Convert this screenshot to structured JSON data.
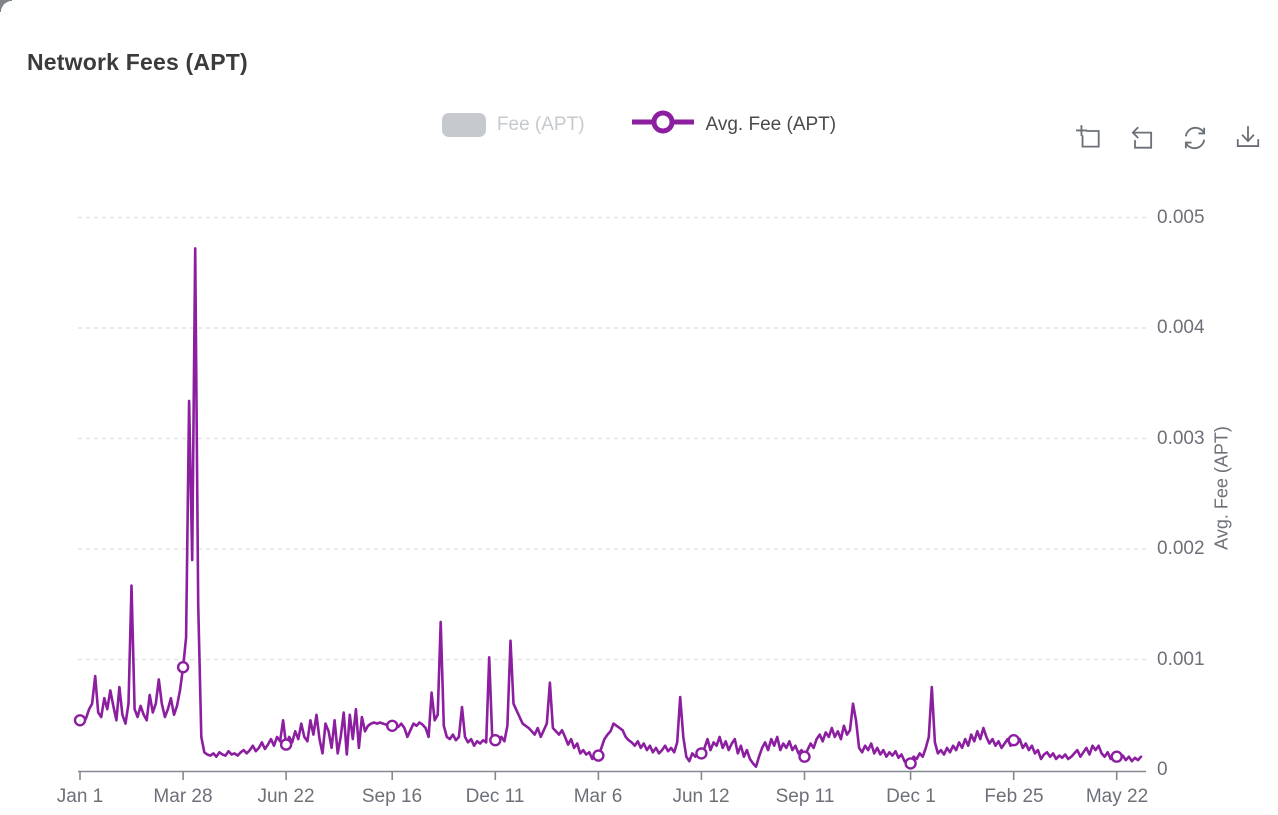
{
  "page": {
    "title": "Network Fees (APT)"
  },
  "legend": {
    "items": [
      {
        "label": "Fee (APT)",
        "type": "bar",
        "enabled": false
      },
      {
        "label": "Avg. Fee (APT)",
        "type": "line",
        "enabled": true
      }
    ]
  },
  "toolbar": {
    "buttons": [
      "data-zoom",
      "zoom-reset",
      "restore",
      "save-as-image"
    ]
  },
  "colors": {
    "series_line": "#8c1ea0",
    "disabled_legend": "#c6c9cd",
    "axis_text": "#6e7079",
    "grid_line": "#e1e3e6",
    "axis_line": "#85898f",
    "title_text": "#3b3b3b"
  },
  "chart_data": {
    "type": "line",
    "title": "Network Fees (APT)",
    "legend_position": "top-center",
    "grid": "horizontal-dashed",
    "x_axis": {
      "tick_labels": [
        "Jan 1",
        "Mar 28",
        "Jun 22",
        "Sep 16",
        "Dec 11",
        "Mar 6",
        "Jun 12",
        "Sep 11",
        "Dec 1",
        "Feb 25",
        "May 22"
      ],
      "tick_indices": [
        0,
        34,
        68,
        103,
        137,
        171,
        205,
        239,
        274,
        308,
        342
      ]
    },
    "y_axis": {
      "name": "Avg. Fee (APT)",
      "ticks": [
        0.005,
        0.004,
        0.003,
        0.002,
        0.001,
        0
      ],
      "tick_labels": [
        "0.005",
        "0.004",
        "0.003",
        "0.002",
        "0.001",
        "0"
      ],
      "range": [
        0,
        0.005
      ]
    },
    "series": [
      {
        "name": "Avg. Fee (APT)",
        "type": "line",
        "color": "#8c1ea0",
        "value_scale": 1e-05,
        "marker_indices": [
          0,
          34,
          68,
          103,
          137,
          171,
          205,
          239,
          274,
          308,
          342
        ],
        "values": [
          45,
          42,
          47,
          55,
          60,
          85,
          52,
          48,
          65,
          55,
          72,
          58,
          45,
          75,
          50,
          42,
          60,
          167,
          55,
          48,
          58,
          50,
          45,
          68,
          52,
          60,
          82,
          60,
          48,
          55,
          65,
          50,
          58,
          72,
          93,
          120,
          334,
          190,
          472,
          150,
          30,
          16,
          14,
          13,
          15,
          12,
          16,
          14,
          13,
          17,
          14,
          15,
          13,
          16,
          18,
          15,
          18,
          22,
          17,
          20,
          25,
          19,
          23,
          28,
          22,
          30,
          26,
          45,
          23,
          30,
          25,
          35,
          28,
          42,
          30,
          26,
          45,
          32,
          50,
          28,
          15,
          42,
          35,
          20,
          45,
          15,
          30,
          52,
          14,
          50,
          28,
          55,
          20,
          48,
          35,
          40,
          42,
          43,
          42,
          43,
          42,
          41,
          42,
          40,
          41,
          39,
          42,
          38,
          30,
          36,
          42,
          40,
          43,
          41,
          38,
          30,
          70,
          45,
          50,
          134,
          40,
          30,
          28,
          32,
          27,
          30,
          57,
          30,
          25,
          28,
          22,
          26,
          24,
          27,
          25,
          102,
          28,
          27,
          24,
          30,
          26,
          40,
          117,
          60,
          54,
          48,
          42,
          40,
          38,
          35,
          32,
          38,
          30,
          36,
          42,
          79,
          38,
          35,
          32,
          36,
          30,
          23,
          28,
          20,
          24,
          15,
          18,
          14,
          16,
          10,
          13,
          13,
          20,
          28,
          32,
          35,
          42,
          40,
          38,
          36,
          30,
          27,
          25,
          22,
          26,
          20,
          24,
          18,
          22,
          16,
          20,
          15,
          18,
          22,
          17,
          20,
          16,
          25,
          66,
          30,
          12,
          8,
          15,
          12,
          16,
          15,
          20,
          28,
          18,
          25,
          22,
          30,
          20,
          26,
          18,
          24,
          28,
          15,
          22,
          12,
          18,
          10,
          6,
          3,
          12,
          20,
          25,
          18,
          28,
          22,
          30,
          18,
          24,
          20,
          26,
          18,
          22,
          15,
          18,
          12,
          18,
          24,
          20,
          28,
          32,
          26,
          34,
          30,
          38,
          30,
          35,
          28,
          40,
          32,
          36,
          60,
          45,
          20,
          16,
          22,
          18,
          24,
          15,
          20,
          14,
          18,
          12,
          16,
          13,
          17,
          11,
          14,
          8,
          5,
          6,
          12,
          10,
          15,
          12,
          20,
          30,
          75,
          25,
          15,
          18,
          14,
          20,
          16,
          22,
          18,
          25,
          20,
          28,
          22,
          32,
          26,
          35,
          28,
          38,
          30,
          24,
          28,
          22,
          26,
          20,
          24,
          28,
          22,
          27,
          24,
          28,
          20,
          24,
          18,
          22,
          15,
          18,
          10,
          14,
          16,
          12,
          15,
          10,
          13,
          11,
          14,
          10,
          12,
          15,
          18,
          12,
          16,
          20,
          14,
          22,
          18,
          22,
          15,
          12,
          16,
          10,
          14,
          12,
          10,
          13,
          9,
          12,
          8,
          11,
          9,
          12
        ]
      },
      {
        "name": "Fee (APT)",
        "type": "bar",
        "visible": false
      }
    ]
  }
}
